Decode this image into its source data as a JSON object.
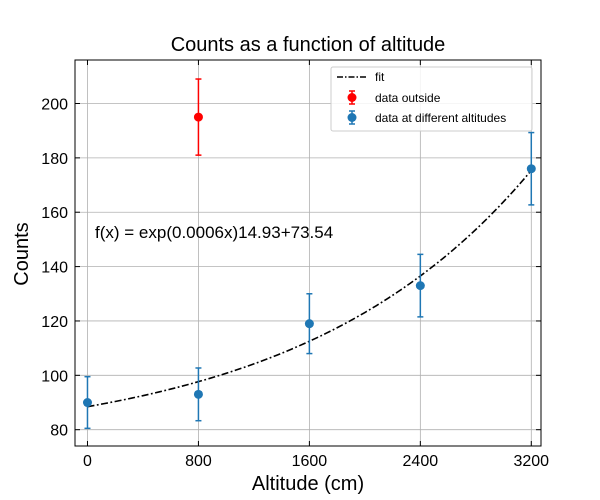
{
  "chart_data": {
    "type": "scatter",
    "title": "Counts as a function of altitude",
    "xlabel": "Altitude (cm)",
    "ylabel": "Counts",
    "xlim": [
      -90,
      3270
    ],
    "ylim": [
      74,
      216
    ],
    "xticks": [
      0,
      800,
      1600,
      2400,
      3200
    ],
    "yticks": [
      80,
      100,
      120,
      140,
      160,
      180,
      200
    ],
    "grid": true,
    "legend_position": "top-right",
    "annotation": "f(x) = exp(0.0006x)14.93+73.54",
    "fit": {
      "name": "fit",
      "a": 0.0006,
      "b": 14.93,
      "c": 73.54,
      "x_range": [
        0,
        3200
      ],
      "color": "#000000"
    },
    "series": [
      {
        "name": "data outside",
        "color": "#ff0000",
        "points": [
          {
            "x": 800,
            "y": 195,
            "err": 14
          }
        ]
      },
      {
        "name": "data at different altitudes",
        "color": "#1f77b4",
        "points": [
          {
            "x": 0,
            "y": 90,
            "err": 9.5
          },
          {
            "x": 800,
            "y": 93,
            "err": 9.7
          },
          {
            "x": 1600,
            "y": 119,
            "err": 11
          },
          {
            "x": 2400,
            "y": 133,
            "err": 11.5
          },
          {
            "x": 3200,
            "y": 176,
            "err": 13.3
          }
        ]
      }
    ]
  }
}
